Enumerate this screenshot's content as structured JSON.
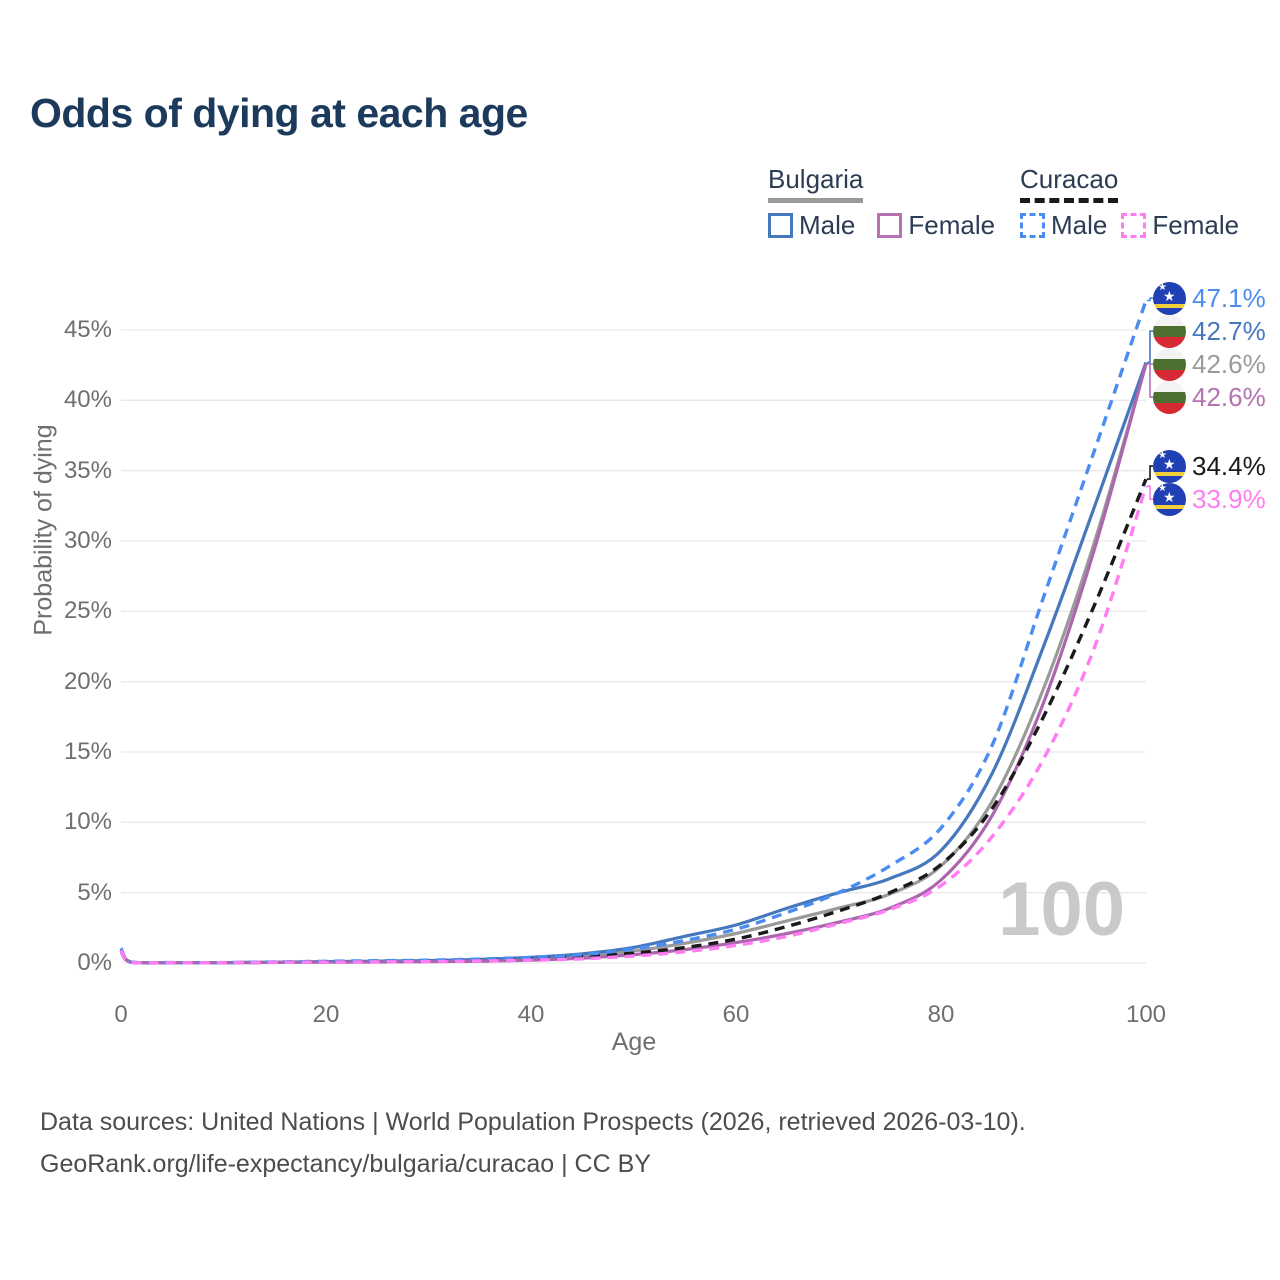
{
  "title": "Odds of dying at each age",
  "watermark_age": "100",
  "legend": {
    "groups": [
      {
        "name": "Bulgaria",
        "line_style": "solid",
        "underline_color": "#9a9a9a",
        "items": [
          {
            "label": "Male",
            "color": "#4678bd"
          },
          {
            "label": "Female",
            "color": "#b573b2"
          }
        ]
      },
      {
        "name": "Curacao",
        "line_style": "dashed",
        "underline_color": "#1a1a1a",
        "items": [
          {
            "label": "Male",
            "color": "#4a8cf2"
          },
          {
            "label": "Female",
            "color": "#ff7df2"
          }
        ]
      }
    ]
  },
  "axes": {
    "x": {
      "title": "Age",
      "ticks": [
        "0",
        "20",
        "40",
        "60",
        "80",
        "100"
      ],
      "tick_values": [
        0,
        20,
        40,
        60,
        80,
        100
      ]
    },
    "y": {
      "title": "Probability of dying",
      "ticks": [
        "0%",
        "5%",
        "10%",
        "15%",
        "20%",
        "25%",
        "30%",
        "35%",
        "40%",
        "45%"
      ],
      "tick_values": [
        0,
        5,
        10,
        15,
        20,
        25,
        30,
        35,
        40,
        45
      ]
    }
  },
  "chart_data": {
    "type": "line",
    "title": "Odds of dying at each age",
    "xlabel": "Age",
    "ylabel": "Probability of dying",
    "xlim": [
      0,
      100
    ],
    "ylim": [
      0,
      47.5
    ],
    "grid": "horizontal",
    "legend_position": "top-right",
    "x": [
      0,
      1,
      5,
      10,
      15,
      20,
      25,
      30,
      35,
      40,
      45,
      50,
      55,
      60,
      65,
      70,
      75,
      80,
      85,
      90,
      95,
      100
    ],
    "series": [
      {
        "name": "Bulgaria Both sexes",
        "country": "Bulgaria",
        "sex": "Both",
        "color": "#9a9a9a",
        "dash": "solid",
        "values": [
          0.9,
          0.05,
          0.02,
          0.02,
          0.05,
          0.08,
          0.1,
          0.13,
          0.19,
          0.3,
          0.5,
          0.85,
          1.4,
          2.1,
          3.0,
          3.9,
          4.9,
          6.9,
          11.5,
          19.5,
          30.0,
          42.6
        ]
      },
      {
        "name": "Bulgaria Male",
        "country": "Bulgaria",
        "sex": "Male",
        "color": "#4678bd",
        "dash": "solid",
        "values": [
          0.95,
          0.06,
          0.03,
          0.03,
          0.06,
          0.1,
          0.13,
          0.17,
          0.25,
          0.4,
          0.65,
          1.1,
          1.9,
          2.7,
          3.9,
          5.0,
          6.0,
          8.0,
          13.5,
          22.5,
          32.5,
          42.7
        ]
      },
      {
        "name": "Bulgaria Female",
        "country": "Bulgaria",
        "sex": "Female",
        "color": "#ac66ae",
        "dash": "solid",
        "values": [
          0.8,
          0.05,
          0.02,
          0.02,
          0.04,
          0.06,
          0.07,
          0.09,
          0.13,
          0.2,
          0.35,
          0.6,
          0.95,
          1.45,
          2.1,
          2.9,
          3.9,
          5.9,
          10.5,
          18.5,
          29.5,
          42.6
        ]
      },
      {
        "name": "Curacao Both sexes",
        "country": "Curacao",
        "sex": "Both",
        "color": "#1a1a1a",
        "dash": "dashed",
        "values": [
          0.95,
          0.06,
          0.02,
          0.02,
          0.05,
          0.09,
          0.11,
          0.14,
          0.2,
          0.3,
          0.45,
          0.7,
          1.1,
          1.7,
          2.6,
          3.7,
          5.0,
          7.0,
          11.0,
          17.5,
          25.5,
          34.4
        ]
      },
      {
        "name": "Curacao Male",
        "country": "Curacao",
        "sex": "Male",
        "color": "#4a8cf2",
        "dash": "dashed",
        "values": [
          1.05,
          0.07,
          0.03,
          0.03,
          0.07,
          0.12,
          0.16,
          0.2,
          0.28,
          0.4,
          0.6,
          1.0,
          1.6,
          2.4,
          3.6,
          5.0,
          6.9,
          9.6,
          15.5,
          26.0,
          36.5,
          47.1
        ]
      },
      {
        "name": "Curacao Female",
        "country": "Curacao",
        "sex": "Female",
        "color": "#ff7df2",
        "dash": "dashed",
        "values": [
          0.9,
          0.05,
          0.02,
          0.02,
          0.04,
          0.06,
          0.08,
          0.1,
          0.14,
          0.2,
          0.3,
          0.5,
          0.8,
          1.25,
          1.9,
          2.8,
          3.8,
          5.5,
          9.0,
          14.5,
          22.5,
          33.9
        ]
      }
    ],
    "end_labels": [
      {
        "text": "47.1%",
        "value": 47.1,
        "color": "#4a8cf2",
        "flag": "curacao",
        "series": "Curacao Male"
      },
      {
        "text": "42.7%",
        "value": 42.7,
        "color": "#4678bd",
        "flag": "bulgaria",
        "series": "Bulgaria Male"
      },
      {
        "text": "42.6%",
        "value": 42.6,
        "color": "#9a9a9a",
        "flag": "bulgaria",
        "series": "Bulgaria Both sexes"
      },
      {
        "text": "42.6%",
        "value": 42.6,
        "color": "#b573b2",
        "flag": "bulgaria",
        "series": "Bulgaria Female"
      },
      {
        "text": "34.4%",
        "value": 34.4,
        "color": "#1a1a1a",
        "flag": "curacao",
        "series": "Curacao Both sexes"
      },
      {
        "text": "33.9%",
        "value": 33.9,
        "color": "#ff7df2",
        "flag": "curacao",
        "series": "Curacao Female"
      }
    ]
  },
  "footer": {
    "line1": "Data sources: United Nations | World Population Prospects (2026, retrieved 2026-03-10).",
    "line2": "GeoRank.org/life-expectancy/bulgaria/curacao | CC BY"
  }
}
